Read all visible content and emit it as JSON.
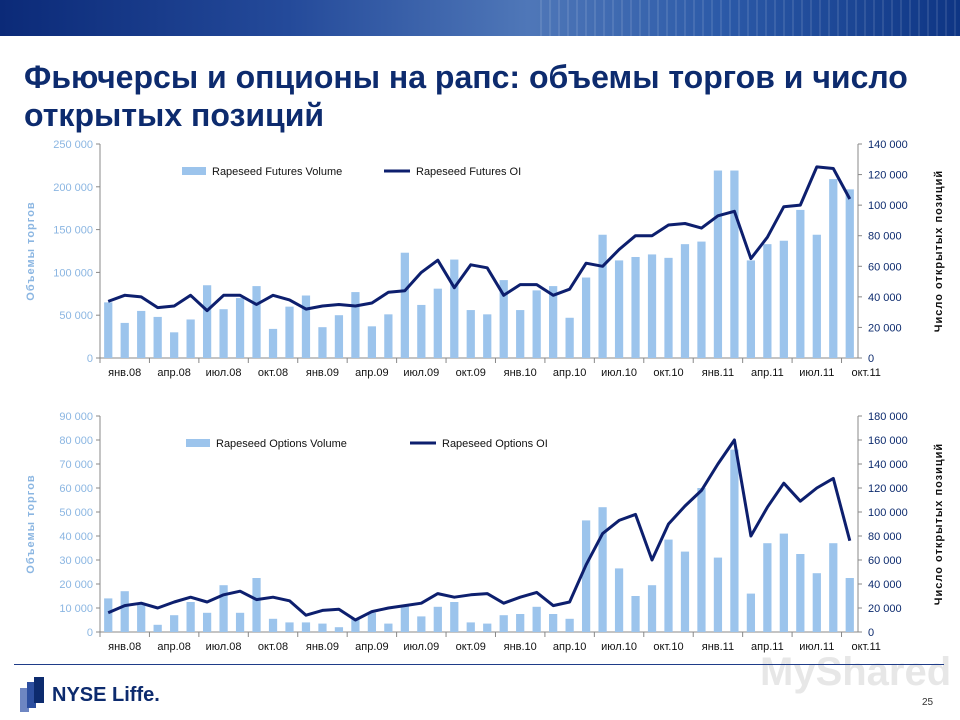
{
  "slide": {
    "title": "Фьючерсы и опционы на рапс: объемы торгов и число открытых позиций",
    "page_number": "25",
    "logo_text": "NYSE Liffe.",
    "watermark": "MyShared"
  },
  "colors": {
    "bar": "#9cc4ec",
    "line": "#0d1f6e",
    "axis_text": "#8bb6e2",
    "title": "#0d2b6e"
  },
  "chart_data": [
    {
      "type": "bar",
      "ylabel": "Объемы торгов",
      "y2label": "Число открытых позиций",
      "ylim": [
        0,
        250000
      ],
      "y2lim": [
        0,
        140000
      ],
      "yticks": [
        "0",
        "50 000",
        "100 000",
        "150 000",
        "200 000",
        "250 000"
      ],
      "y2ticks": [
        "0",
        "20 000",
        "40 000",
        "60 000",
        "80 000",
        "100 000",
        "120 000",
        "140 000"
      ],
      "xticks": [
        "янв.08",
        "апр.08",
        "июл.08",
        "окт.08",
        "янв.09",
        "апр.09",
        "июл.09",
        "окт.09",
        "янв.10",
        "апр.10",
        "июл.10",
        "окт.10",
        "янв.11",
        "апр.11",
        "июл.11",
        "окт.11"
      ],
      "legend_position": "top",
      "series": [
        {
          "name": "Rapeseed Futures Volume",
          "type": "bar",
          "axis": "left",
          "values": [
            65000,
            41000,
            55000,
            48000,
            30000,
            45000,
            85000,
            57000,
            70000,
            84000,
            34000,
            60000,
            73000,
            36000,
            50000,
            77000,
            37000,
            51000,
            123000,
            62000,
            81000,
            115000,
            56000,
            51000,
            91000,
            56000,
            79000,
            84000,
            47000,
            94000,
            144000,
            114000,
            118000,
            121000,
            117000,
            133000,
            136000,
            219000,
            219000,
            114000,
            133000,
            137000,
            173000,
            144000,
            209000,
            197000
          ]
        },
        {
          "name": "Rapeseed Futures OI",
          "type": "line",
          "axis": "right",
          "values": [
            37000,
            41000,
            40000,
            33000,
            34000,
            41000,
            31000,
            41000,
            41000,
            35000,
            41000,
            38000,
            32000,
            34000,
            35000,
            34000,
            36000,
            43000,
            44000,
            56000,
            64000,
            46000,
            61000,
            59000,
            41000,
            48000,
            48000,
            41000,
            45000,
            62000,
            60000,
            71000,
            80000,
            80000,
            87000,
            88000,
            85000,
            93000,
            96000,
            65000,
            79000,
            99000,
            100000,
            125000,
            124000,
            104000
          ]
        }
      ]
    },
    {
      "type": "bar",
      "ylabel": "Объемы торгов",
      "y2label": "Число открытых позиций",
      "ylim": [
        0,
        90000
      ],
      "y2lim": [
        0,
        180000
      ],
      "yticks": [
        "0",
        "10 000",
        "20 000",
        "30 000",
        "40 000",
        "50 000",
        "60 000",
        "70 000",
        "80 000",
        "90 000"
      ],
      "y2ticks": [
        "0",
        "20 000",
        "40 000",
        "60 000",
        "80 000",
        "100 000",
        "120 000",
        "140 000",
        "160 000",
        "180 000"
      ],
      "xticks": [
        "янв.08",
        "апр.08",
        "июл.08",
        "окт.08",
        "янв.09",
        "апр.09",
        "июл.09",
        "окт.09",
        "янв.10",
        "апр.10",
        "июл.10",
        "окт.10",
        "янв.11",
        "апр.11",
        "июл.11",
        "окт.11"
      ],
      "legend_position": "top",
      "series": [
        {
          "name": "Rapeseed Options Volume",
          "type": "bar",
          "axis": "left",
          "values": [
            14000,
            17000,
            12000,
            3000,
            7000,
            12500,
            8000,
            19500,
            8000,
            22500,
            5500,
            4000,
            4000,
            3500,
            2000,
            5500,
            8000,
            3500,
            11000,
            6500,
            10500,
            12500,
            4000,
            3500,
            7000,
            7500,
            10500,
            7500,
            5500,
            46500,
            52000,
            26500,
            15000,
            19500,
            38500,
            33500,
            60000,
            31000,
            76000,
            16000,
            37000,
            41000,
            32500,
            24500,
            37000,
            22500
          ]
        },
        {
          "name": "Rapeseed Options OI",
          "type": "line",
          "axis": "right",
          "values": [
            16000,
            22000,
            24000,
            20000,
            25000,
            29000,
            25000,
            31000,
            34000,
            27000,
            29000,
            26000,
            14000,
            18000,
            19000,
            10000,
            17000,
            20000,
            22000,
            24000,
            32000,
            29000,
            31000,
            32000,
            24000,
            29000,
            33000,
            22000,
            25000,
            56000,
            82000,
            93000,
            98000,
            60000,
            90000,
            105000,
            118000,
            140000,
            160000,
            80000,
            104000,
            124000,
            109000,
            120000,
            128000,
            76000
          ]
        }
      ]
    }
  ]
}
